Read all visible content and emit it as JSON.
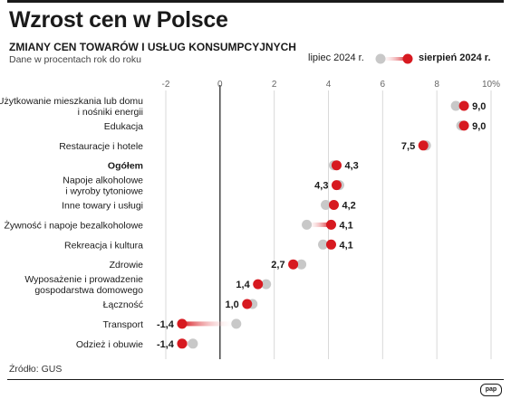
{
  "header": {
    "title": "Wzrost cen w Polsce",
    "subtitle": "ZMIANY CEN TOWARÓW I USŁUG KONSUMPCYJNYCH",
    "note": "Dane w procentach rok do roku"
  },
  "legend": {
    "prev_label": "lipiec 2024 r.",
    "curr_label": "sierpień 2024 r."
  },
  "source": "Źródło: GUS",
  "logo_text": "pap",
  "colors": {
    "current": "#d71920",
    "previous": "#c8c8c8",
    "text": "#1a1a1a",
    "grid": "#d9d9d9",
    "zero_line": "#1a1a1a"
  },
  "chart_data": {
    "type": "dumbbell",
    "xlim": [
      -2,
      10
    ],
    "ticks": [
      "-2",
      "0",
      "2",
      "4",
      "6",
      "8",
      "10%"
    ],
    "tick_values": [
      -2,
      0,
      2,
      4,
      6,
      8,
      10
    ],
    "series": [
      {
        "name": "lipiec 2024 r."
      },
      {
        "name": "sierpień 2024 r."
      }
    ],
    "rows": [
      {
        "label": "Użytkowanie mieszkania lub domu\ni nośniki energii",
        "jul": 8.7,
        "aug": 9.0,
        "aug_label": "9,0",
        "bold": false
      },
      {
        "label": "Edukacja",
        "jul": 8.9,
        "aug": 9.0,
        "aug_label": "9,0",
        "bold": false
      },
      {
        "label": "Restauracje i hotele",
        "jul": 7.6,
        "aug": 7.5,
        "aug_label": "7,5",
        "bold": false
      },
      {
        "label": "Ogółem",
        "jul": 4.2,
        "aug": 4.3,
        "aug_label": "4,3",
        "bold": true
      },
      {
        "label": "Napoje alkoholowe\ni wyroby tytoniowe",
        "jul": 4.4,
        "aug": 4.3,
        "aug_label": "4,3",
        "bold": false
      },
      {
        "label": "Inne towary i usługi",
        "jul": 3.9,
        "aug": 4.2,
        "aug_label": "4,2",
        "bold": false
      },
      {
        "label": "Żywność i napoje bezalkoholowe",
        "jul": 3.2,
        "aug": 4.1,
        "aug_label": "4,1",
        "bold": false
      },
      {
        "label": "Rekreacja i kultura",
        "jul": 3.8,
        "aug": 4.1,
        "aug_label": "4,1",
        "bold": false
      },
      {
        "label": "Zdrowie",
        "jul": 3.0,
        "aug": 2.7,
        "aug_label": "2,7",
        "bold": false
      },
      {
        "label": "Wyposażenie i prowadzenie\ngospodarstwa domowego",
        "jul": 1.7,
        "aug": 1.4,
        "aug_label": "1,4",
        "bold": false
      },
      {
        "label": "Łączność",
        "jul": 1.2,
        "aug": 1.0,
        "aug_label": "1,0",
        "bold": false
      },
      {
        "label": "Transport",
        "jul": 0.6,
        "aug": -1.4,
        "aug_label": "-1,4",
        "bold": false
      },
      {
        "label": "Odzież i obuwie",
        "jul": -1.0,
        "aug": -1.4,
        "aug_label": "-1,4",
        "bold": false
      }
    ]
  }
}
